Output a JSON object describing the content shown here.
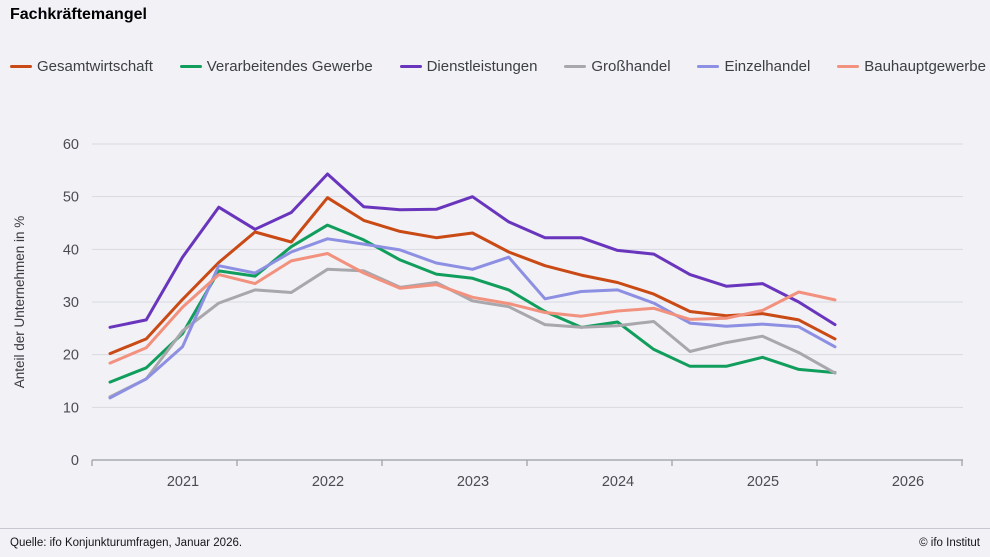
{
  "title": "Fachkräftemangel",
  "footer": {
    "source": "Quelle: ifo Konjunkturumfragen, Januar 2026.",
    "copyright": "© ifo Institut"
  },
  "colors": {
    "background": "#f1f1f6",
    "gridline": "#d9dae0",
    "axis": "#9b9ba3",
    "tick_label": "#4b4b52",
    "legend_text": "#3c4043"
  },
  "chart_data": {
    "type": "line",
    "title": "Fachkräftemangel",
    "ylabel": "Anteil der Unternehmen in %",
    "ylim": [
      0,
      60
    ],
    "yticks": [
      0,
      10,
      20,
      30,
      40,
      50,
      60
    ],
    "grid": "horizontal",
    "legend_position": "top",
    "years": [
      "2021",
      "2022",
      "2023",
      "2024",
      "2025",
      "2026"
    ],
    "x": [
      "2021-01",
      "2021-04",
      "2021-07",
      "2021-10",
      "2022-01",
      "2022-04",
      "2022-07",
      "2022-10",
      "2023-01",
      "2023-04",
      "2023-07",
      "2023-10",
      "2024-01",
      "2024-04",
      "2024-07",
      "2024-10",
      "2025-01",
      "2025-04",
      "2025-07",
      "2025-10",
      "2026-01"
    ],
    "series": [
      {
        "name": "Gesamtwirtschaft",
        "color": "#c94a14",
        "values": [
          20.2,
          23.0,
          30.5,
          37.5,
          43.3,
          41.4,
          49.8,
          45.5,
          43.4,
          42.2,
          43.1,
          39.5,
          36.9,
          35.1,
          33.7,
          31.5,
          28.2,
          27.4,
          27.8,
          26.6,
          23.0
        ]
      },
      {
        "name": "Verarbeitendes Gewerbe",
        "color": "#119e5c",
        "values": [
          14.8,
          17.5,
          24.0,
          35.9,
          34.9,
          40.5,
          44.6,
          41.8,
          38.0,
          35.3,
          34.5,
          32.3,
          28.2,
          25.2,
          26.2,
          21.0,
          17.8,
          17.8,
          19.5,
          17.2,
          16.6
        ]
      },
      {
        "name": "Dienstleistungen",
        "color": "#6935bd",
        "values": [
          25.2,
          26.6,
          38.5,
          48.0,
          43.8,
          47.0,
          54.3,
          48.1,
          47.5,
          47.6,
          50.0,
          45.2,
          42.2,
          42.2,
          39.8,
          39.1,
          35.2,
          33.0,
          33.5,
          30.0,
          25.7
        ]
      },
      {
        "name": "Großhandel",
        "color": "#a8a8ac",
        "values": [
          12.0,
          15.4,
          24.5,
          29.8,
          32.3,
          31.8,
          36.2,
          35.9,
          32.8,
          33.7,
          30.2,
          29.1,
          25.7,
          25.2,
          25.5,
          26.3,
          20.6,
          22.3,
          23.5,
          20.4,
          16.5
        ]
      },
      {
        "name": "Einzelhandel",
        "color": "#8d8fe2",
        "values": [
          11.8,
          15.4,
          21.5,
          36.9,
          35.5,
          39.5,
          42.0,
          41.0,
          39.9,
          37.4,
          36.2,
          38.5,
          30.6,
          32.0,
          32.3,
          29.8,
          26.0,
          25.4,
          25.8,
          25.3,
          21.5
        ]
      },
      {
        "name": "Bauhauptgewerbe",
        "color": "#f2917e",
        "values": [
          18.4,
          21.3,
          29.0,
          35.2,
          33.5,
          37.8,
          39.2,
          35.5,
          32.6,
          33.3,
          30.9,
          29.7,
          28.0,
          27.3,
          28.3,
          28.8,
          26.7,
          26.9,
          28.4,
          31.9,
          30.4
        ]
      }
    ]
  }
}
